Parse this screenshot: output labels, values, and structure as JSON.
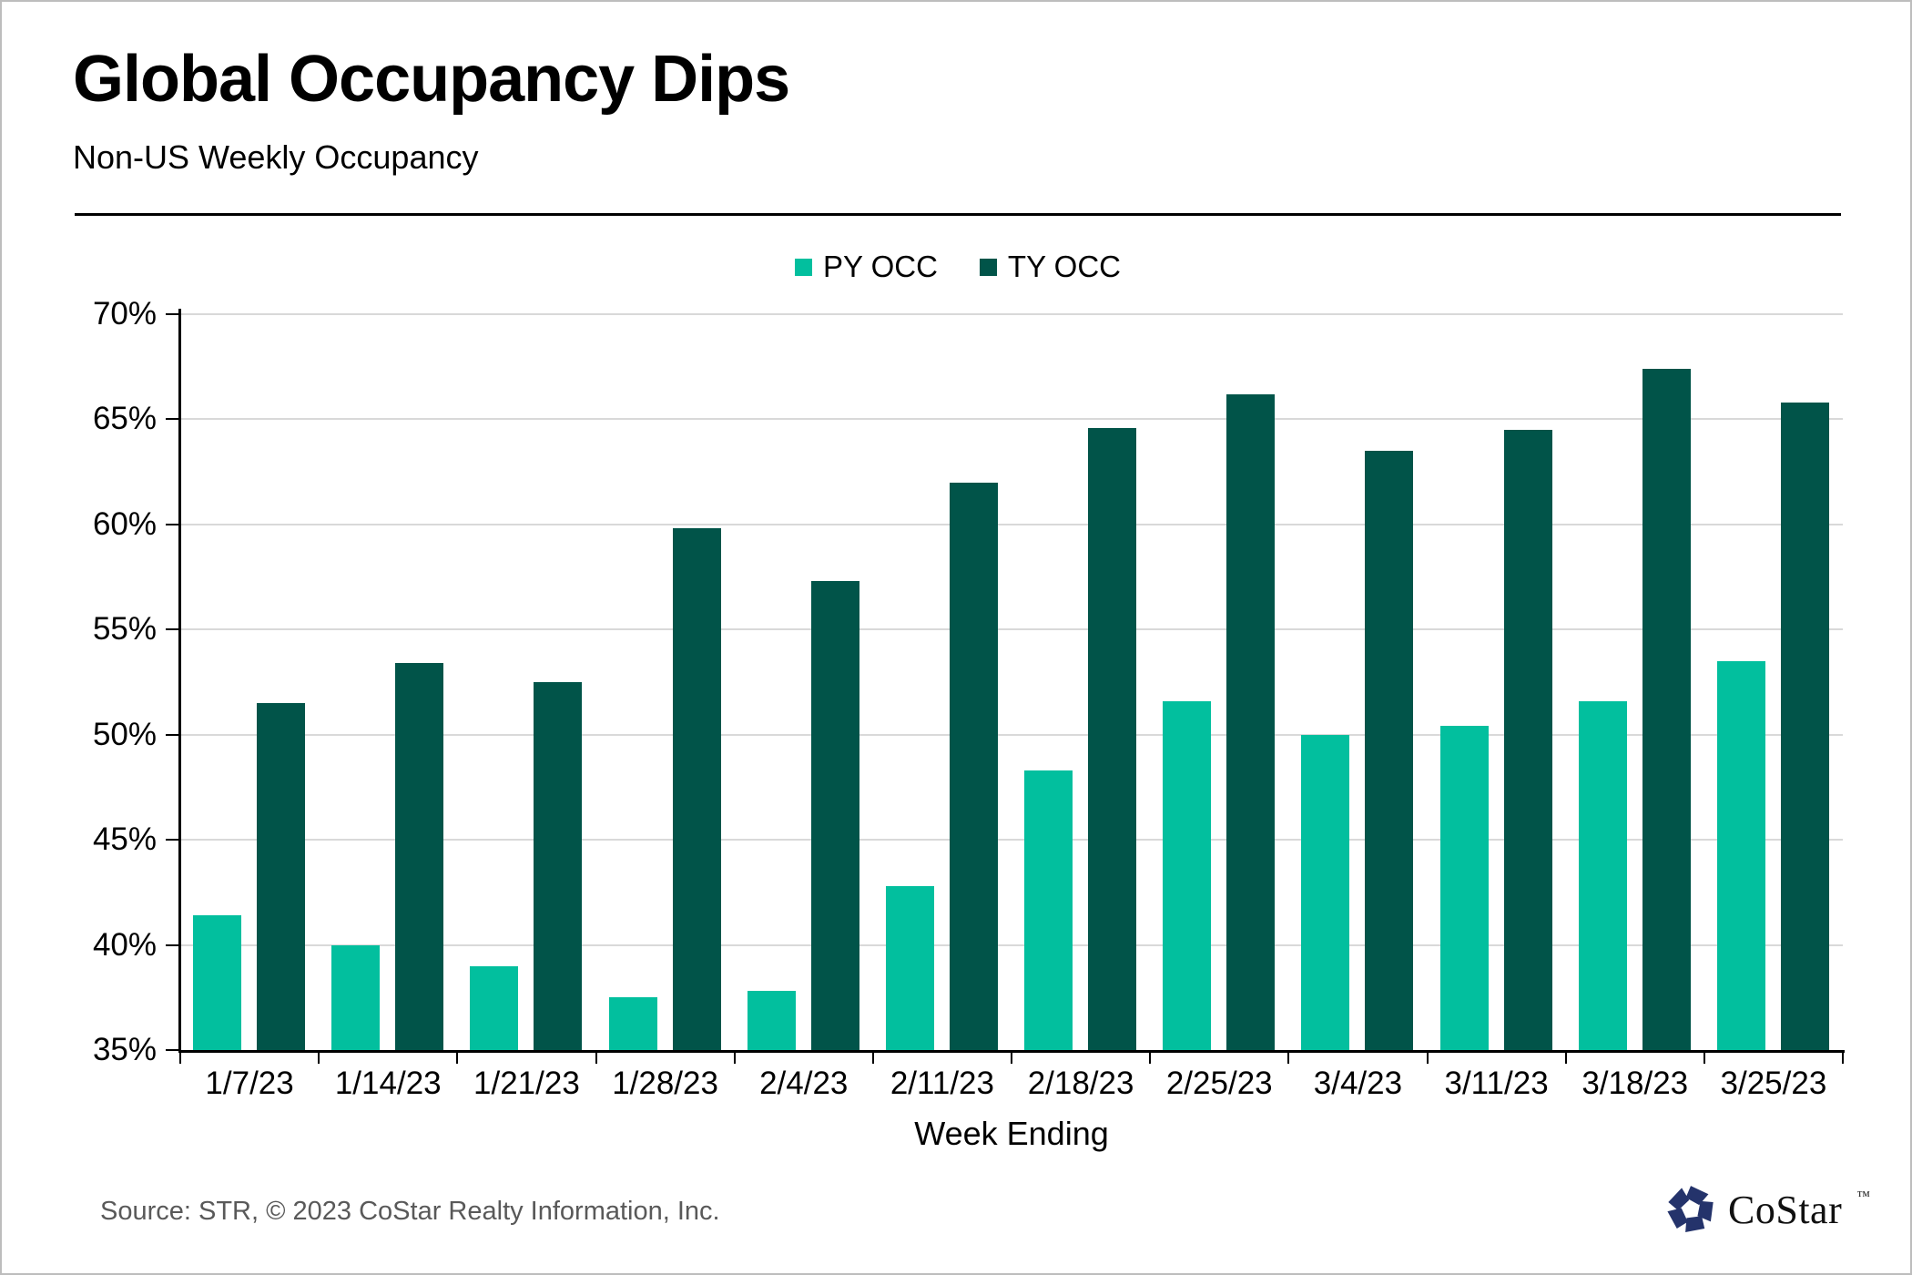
{
  "header": {
    "title": "Global Occupancy Dips",
    "subtitle": "Non-US Weekly Occupancy"
  },
  "chart_data": {
    "type": "bar",
    "title": "Global Occupancy Dips",
    "subtitle": "Non-US Weekly Occupancy",
    "categories": [
      "1/7/23",
      "1/14/23",
      "1/21/23",
      "1/28/23",
      "2/4/23",
      "2/11/23",
      "2/18/23",
      "2/25/23",
      "3/4/23",
      "3/11/23",
      "3/18/23",
      "3/25/23"
    ],
    "series": [
      {
        "name": "PY OCC",
        "color": "#02BF9E",
        "values": [
          41.4,
          40.0,
          39.0,
          37.5,
          37.8,
          42.8,
          48.3,
          51.6,
          50.0,
          50.4,
          51.6,
          53.5
        ]
      },
      {
        "name": "TY OCC",
        "color": "#015449",
        "values": [
          51.5,
          53.4,
          52.5,
          59.8,
          57.3,
          62.0,
          64.6,
          66.2,
          63.5,
          64.5,
          67.4,
          65.8
        ]
      }
    ],
    "xlabel": "Week Ending",
    "ylabel": "",
    "ylim": [
      35,
      70
    ],
    "yticks": [
      "35%",
      "40%",
      "45%",
      "50%",
      "55%",
      "60%",
      "65%",
      "70%"
    ],
    "grid": true,
    "legend_position": "top-center",
    "gridline_color": "#d9d9d9",
    "axis_color": "#000000"
  },
  "footer": {
    "source": "Source: STR, © 2023 CoStar Realty Information, Inc.",
    "logo_text": "CoStar",
    "logo_tm": "™",
    "logo_color": "#24336B"
  }
}
